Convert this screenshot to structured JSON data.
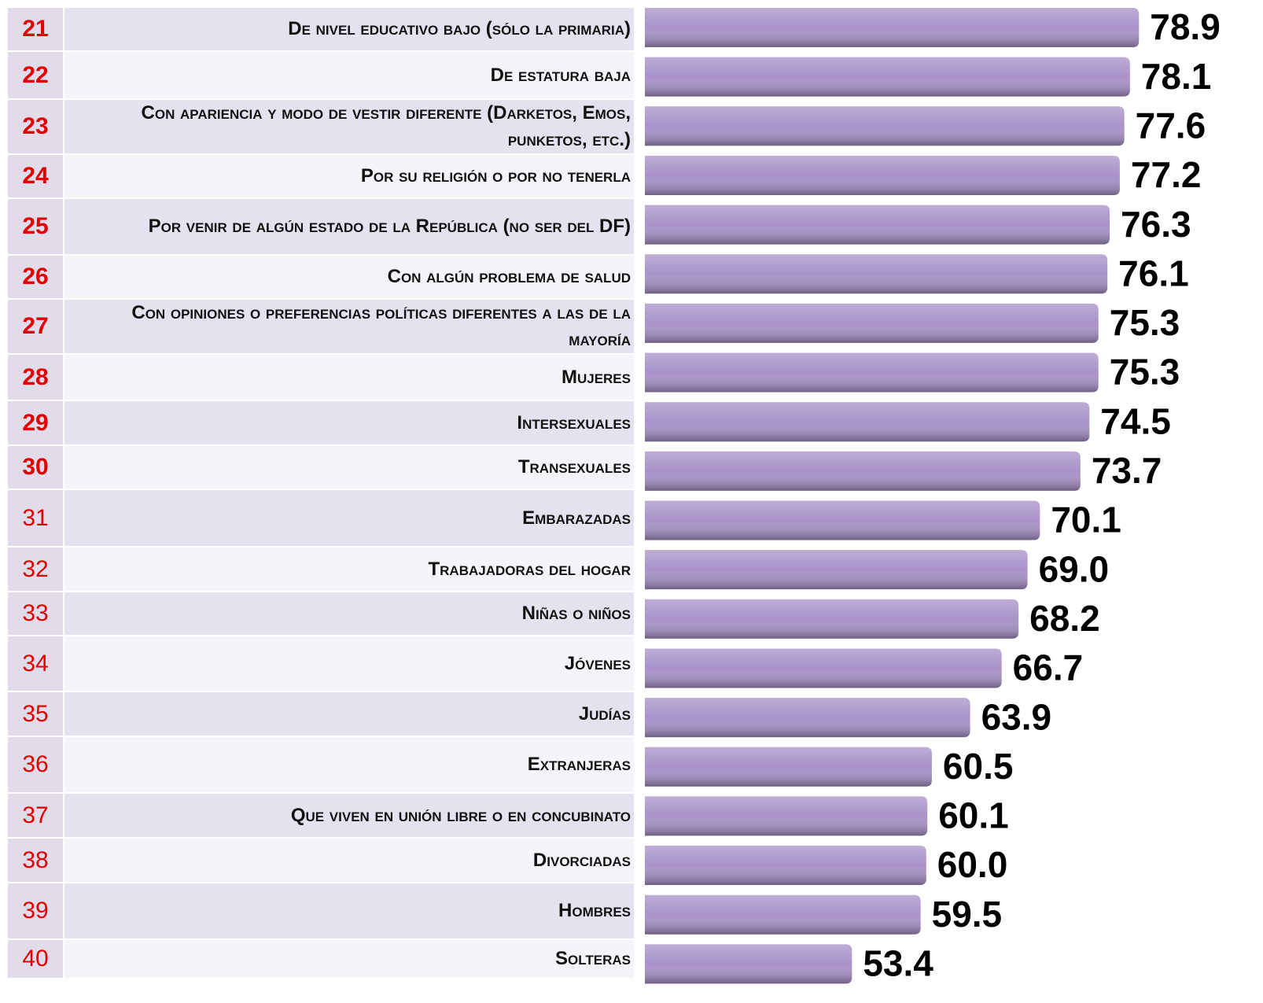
{
  "chart_data": {
    "type": "bar",
    "ranks": [
      21,
      22,
      23,
      24,
      25,
      26,
      27,
      28,
      29,
      30,
      31,
      32,
      33,
      34,
      35,
      36,
      37,
      38,
      39,
      40
    ],
    "categories": [
      "De nivel educativo bajo (sólo la primaria)",
      "De estatura baja",
      "Con apariencia y modo de vestir diferente (Darketos, Emos, punketos, etc.)",
      "Por su religión o por no tenerla",
      "Por venir de algún estado de la República (no ser del DF)",
      "Con algún problema de salud",
      "Con opiniones o preferencias políticas diferentes a las de la mayoría",
      "Mujeres",
      "Intersexuales",
      "Transexuales",
      "Embarazadas",
      "Trabajadoras del hogar",
      "Niñas o niños",
      "Jóvenes",
      "Judías",
      "Extranjeras",
      "Que viven en unión libre o en concubinato",
      "Divorciadas",
      "Hombres",
      "Solteras"
    ],
    "values": [
      78.9,
      78.1,
      77.6,
      77.2,
      76.3,
      76.1,
      75.3,
      75.3,
      74.5,
      73.7,
      70.1,
      69.0,
      68.2,
      66.7,
      63.9,
      60.5,
      60.1,
      60.0,
      59.5,
      53.4
    ],
    "value_labels": [
      "78.9",
      "78.1",
      "77.6",
      "77.2",
      "76.3",
      "76.1",
      "75.3",
      "75.3",
      "74.5",
      "73.7",
      "70.1",
      "69.0",
      "68.2",
      "66.7",
      "63.9",
      "60.5",
      "60.1",
      "60.0",
      "59.5",
      "53.4"
    ],
    "xlim": [
      35,
      80
    ],
    "color": "#a892c8"
  }
}
